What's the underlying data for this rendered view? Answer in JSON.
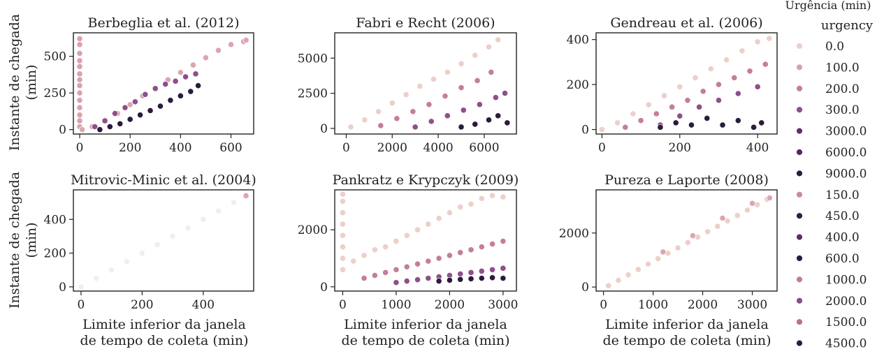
{
  "figure": {
    "y_label_lines": [
      "Instante de chegada",
      "(min)"
    ],
    "x_label_lines": [
      "Limite inferior da janela",
      "de tempo de coleta (min)"
    ]
  },
  "legend": {
    "caption": "Urgência (min)",
    "title": "urgency",
    "entries": [
      {
        "label": "0.0",
        "color": "#ebd0c9"
      },
      {
        "label": "100.0",
        "color": "#d8a3ac"
      },
      {
        "label": "200.0",
        "color": "#c67d99"
      },
      {
        "label": "300.0",
        "color": "#8e4f8a"
      },
      {
        "label": "3000.0",
        "color": "#5e2f66"
      },
      {
        "label": "6000.0",
        "color": "#4e2a5c"
      },
      {
        "label": "9000.0",
        "color": "#2b1b3d"
      },
      {
        "label": "150.0",
        "color": "#cc8c9d"
      },
      {
        "label": "450.0",
        "color": "#321c3f"
      },
      {
        "label": "400.0",
        "color": "#5a2f60"
      },
      {
        "label": "600.0",
        "color": "#2d1a3d"
      },
      {
        "label": "1000.0",
        "color": "#c47b94"
      },
      {
        "label": "2000.0",
        "color": "#8b4b86"
      },
      {
        "label": "1500.0",
        "color": "#b8708f"
      },
      {
        "label": "4500.0",
        "color": "#2e1b3e"
      }
    ]
  },
  "chart_data": [
    {
      "type": "scatter",
      "title": "Berbeglia et al. (2012)",
      "xlabel": "",
      "ylabel": "Instante de chegada (min)",
      "xlim": [
        -25,
        690
      ],
      "ylim": [
        -30,
        660
      ],
      "xticks": [
        0,
        200,
        400,
        600
      ],
      "yticks": [
        0,
        250,
        500
      ],
      "series": [
        {
          "x": [
            0,
            0,
            0,
            0,
            0,
            0,
            0,
            0,
            0,
            0,
            0,
            0,
            0,
            0
          ],
          "y": [
            20,
            60,
            100,
            150,
            200,
            250,
            300,
            340,
            380,
            430,
            470,
            520,
            580,
            620
          ],
          "color": "#d8a3ac"
        },
        {
          "x": [
            10,
            50,
            100,
            150,
            200,
            250,
            300,
            350,
            400,
            450,
            500,
            550,
            600,
            650,
            660
          ],
          "y": [
            0,
            20,
            60,
            110,
            170,
            230,
            280,
            340,
            390,
            440,
            490,
            540,
            580,
            600,
            610
          ],
          "color": "#dba6b0"
        },
        {
          "x": [
            60,
            100,
            140,
            180,
            220,
            260,
            300,
            340,
            380,
            420,
            460
          ],
          "y": [
            20,
            60,
            110,
            150,
            190,
            240,
            280,
            310,
            330,
            360,
            380
          ],
          "color": "#8e4f8a"
        },
        {
          "x": [
            80,
            120,
            160,
            200,
            240,
            280,
            320,
            360,
            400,
            440,
            470
          ],
          "y": [
            0,
            20,
            40,
            70,
            100,
            130,
            160,
            200,
            230,
            260,
            300
          ],
          "color": "#2b1b3d"
        }
      ]
    },
    {
      "type": "scatter",
      "title": "Fabri e Recht (2006)",
      "xlabel": "",
      "ylabel": "",
      "xlim": [
        -500,
        7400
      ],
      "ylim": [
        -400,
        6800
      ],
      "xticks": [
        0,
        2000,
        4000,
        6000
      ],
      "yticks": [
        0,
        2500,
        5000
      ],
      "series": [
        {
          "x": [
            200,
            800,
            1400,
            2000,
            2600,
            3200,
            3800,
            4400,
            5000,
            5600,
            6200,
            6600
          ],
          "y": [
            100,
            600,
            1200,
            1800,
            2400,
            3000,
            3500,
            4000,
            4600,
            5200,
            5800,
            6300
          ],
          "color": "#ebd0c9"
        },
        {
          "x": [
            1500,
            2200,
            2900,
            3600,
            4300,
            5000,
            5700,
            6300
          ],
          "y": [
            200,
            700,
            1200,
            1700,
            2300,
            2900,
            3400,
            4000
          ],
          "color": "#c67d99"
        },
        {
          "x": [
            3000,
            3700,
            4400,
            5100,
            5800,
            6500,
            6900
          ],
          "y": [
            100,
            500,
            900,
            1300,
            1700,
            2200,
            2500
          ],
          "color": "#8e4f8a"
        },
        {
          "x": [
            5000,
            5600,
            6200,
            6600,
            7000
          ],
          "y": [
            100,
            300,
            600,
            900,
            400
          ],
          "color": "#2b1b3d"
        }
      ]
    },
    {
      "type": "scatter",
      "title": "Gendreau et al. (2006)",
      "xlabel": "",
      "ylabel": "",
      "xlim": [
        -15,
        450
      ],
      "ylim": [
        -20,
        430
      ],
      "xticks": [
        0,
        200,
        400
      ],
      "yticks": [
        0,
        200,
        400
      ],
      "series": [
        {
          "x": [
            0,
            40,
            80,
            120,
            160,
            200,
            240,
            280,
            320,
            360,
            400,
            430
          ],
          "y": [
            0,
            30,
            70,
            110,
            150,
            190,
            230,
            270,
            310,
            350,
            390,
            405
          ],
          "color": "#ebd0c9"
        },
        {
          "x": [
            60,
            100,
            140,
            180,
            220,
            260,
            300,
            340,
            380,
            420
          ],
          "y": [
            10,
            40,
            70,
            100,
            130,
            170,
            200,
            230,
            260,
            290
          ],
          "color": "#c67d99"
        },
        {
          "x": [
            150,
            200,
            250,
            300,
            350,
            400
          ],
          "y": [
            20,
            60,
            100,
            130,
            160,
            190
          ],
          "color": "#8e4f8a"
        },
        {
          "x": [
            150,
            190,
            230,
            270,
            310,
            350,
            390,
            410
          ],
          "y": [
            10,
            30,
            20,
            50,
            20,
            40,
            10,
            30
          ],
          "color": "#2b1b3d"
        }
      ]
    },
    {
      "type": "scatter",
      "title": "Mitrovic-Minic et al. (2004)",
      "xlabel": "Limite inferior da janela de tempo de coleta (min)",
      "ylabel": "Instante de chegada (min)",
      "xlim": [
        -25,
        565
      ],
      "ylim": [
        -25,
        575
      ],
      "xticks": [
        0,
        200,
        400
      ],
      "yticks": [
        0,
        200,
        400
      ],
      "series": [
        {
          "x": [
            0,
            50,
            100,
            150,
            200,
            250,
            300,
            350,
            400,
            450,
            500
          ],
          "y": [
            0,
            50,
            100,
            150,
            200,
            250,
            300,
            350,
            400,
            450,
            500
          ],
          "color": "#f6ecea"
        },
        {
          "x": [
            540
          ],
          "y": [
            540
          ],
          "color": "#dba6b0"
        }
      ]
    },
    {
      "type": "scatter",
      "title": "Pankratz e Krypczyk (2009)",
      "xlabel": "Limite inferior da janela de tempo de coleta (min)",
      "ylabel": "",
      "xlim": [
        -150,
        3250
      ],
      "ylim": [
        -150,
        3400
      ],
      "xticks": [
        0,
        1000,
        2000,
        3000
      ],
      "yticks": [
        0,
        2000
      ],
      "series": [
        {
          "x": [
            0,
            0,
            0,
            0,
            0,
            0,
            0,
            0
          ],
          "y": [
            600,
            1000,
            1400,
            1800,
            2200,
            2600,
            3000,
            3250
          ],
          "color": "#ebd0c9"
        },
        {
          "x": [
            200,
            400,
            600,
            800,
            1000,
            1200,
            1400,
            1600,
            1800,
            2000,
            2200,
            2400,
            2600,
            2800,
            3000
          ],
          "y": [
            900,
            1100,
            1300,
            1400,
            1600,
            1800,
            2000,
            2200,
            2400,
            2600,
            2800,
            2900,
            3100,
            3200,
            3150
          ],
          "color": "#ebd0c9"
        },
        {
          "x": [
            400,
            600,
            800,
            1000,
            1200,
            1400,
            1600,
            1800,
            2000,
            2200,
            2400,
            2600,
            2800,
            3000
          ],
          "y": [
            300,
            400,
            500,
            600,
            700,
            800,
            900,
            1000,
            1100,
            1200,
            1300,
            1400,
            1500,
            1600
          ],
          "color": "#c67d99"
        },
        {
          "x": [
            1000,
            1200,
            1400,
            1600,
            1800,
            2000,
            2200,
            2400,
            2600,
            2800,
            3000
          ],
          "y": [
            150,
            200,
            250,
            300,
            350,
            400,
            450,
            500,
            550,
            600,
            650
          ],
          "color": "#8e4f8a"
        },
        {
          "x": [
            1800,
            2000,
            2200,
            2400,
            2600,
            2800,
            3000
          ],
          "y": [
            200,
            230,
            260,
            280,
            300,
            320,
            300
          ],
          "color": "#2b1b3d"
        }
      ]
    },
    {
      "type": "scatter",
      "title": "Pureza e Laporte (2008)",
      "xlabel": "Limite inferior da janela de tempo de coleta (min)",
      "ylabel": "",
      "xlim": [
        -150,
        3500
      ],
      "ylim": [
        -150,
        3600
      ],
      "xticks": [
        0,
        1000,
        2000,
        3000
      ],
      "yticks": [
        0,
        2000
      ],
      "series": [
        {
          "x": [
            100,
            300,
            500,
            700,
            900,
            1100,
            1300,
            1500,
            1700,
            1900,
            2100,
            2300,
            2500,
            2700,
            2900,
            3100,
            3300
          ],
          "y": [
            50,
            250,
            450,
            650,
            850,
            1050,
            1250,
            1450,
            1650,
            1850,
            2050,
            2250,
            2450,
            2650,
            2850,
            3050,
            3250
          ],
          "color": "#ebd0c9"
        },
        {
          "x": [
            1200,
            1800,
            2400,
            3000,
            3350
          ],
          "y": [
            1300,
            1900,
            2550,
            3100,
            3300
          ],
          "color": "#dba6b0"
        }
      ]
    }
  ]
}
